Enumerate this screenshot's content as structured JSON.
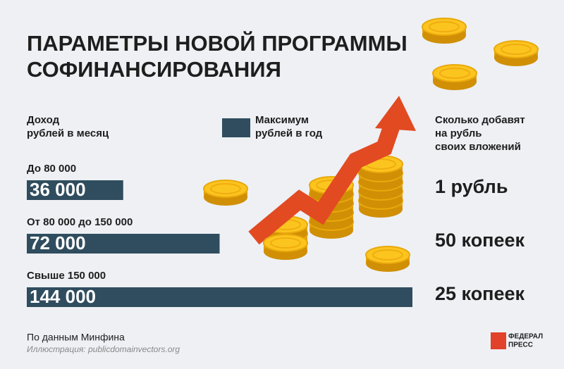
{
  "chart_data": {
    "type": "bar",
    "orientation": "horizontal",
    "title": [
      "ПАРАМЕТРЫ НОВОЙ ПРОГРАММЫ",
      "СОФИНАНСИРОВАНИЯ"
    ],
    "category_header": [
      "Доход",
      "рублей в месяц"
    ],
    "categories": [
      "До 80 000",
      "От 80 000 до 150 000",
      "Свыше 150 000"
    ],
    "series": [
      {
        "name": [
          "Максимум",
          "рублей в год"
        ],
        "color": "#2f4d5e",
        "values": [
          36000,
          72000,
          144000
        ],
        "value_labels": [
          "36 000",
          "72 000",
          "144 000"
        ]
      }
    ],
    "match_header": [
      "Сколько добавят",
      "на рубль",
      "своих вложений"
    ],
    "match_labels": [
      "1 рубль",
      "50 копеек",
      "25 копеек"
    ],
    "source": "По данным Минфина",
    "credit": "Иллюстрация: publicdomainvectors.org",
    "logo": [
      "ФЕДЕРАЛ",
      "ПРЕСС"
    ]
  }
}
